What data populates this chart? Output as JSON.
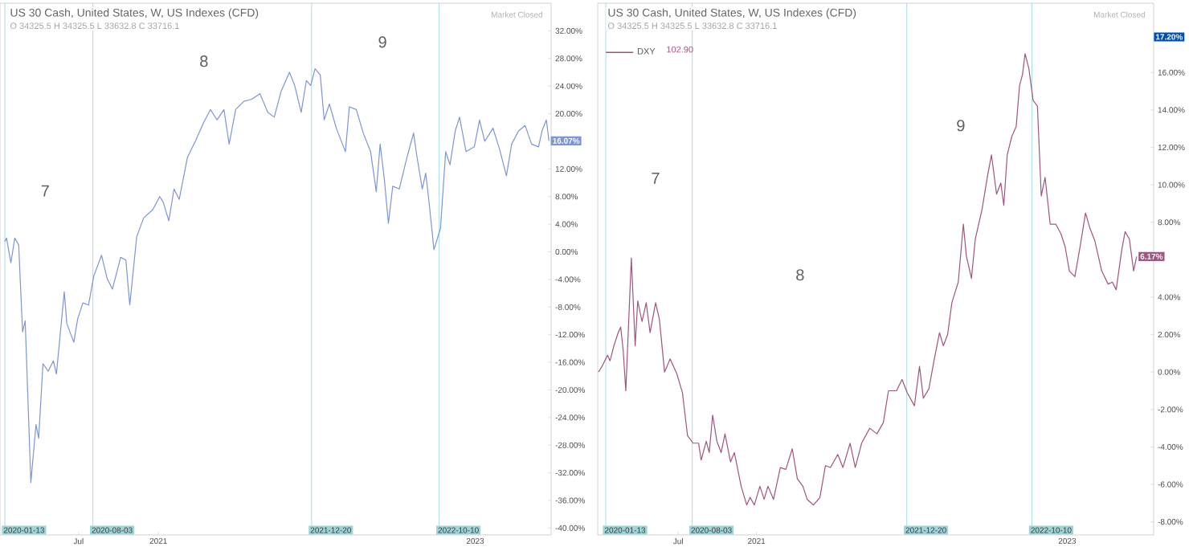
{
  "chart_data": [
    {
      "type": "line",
      "title": "US 30 Cash, United States, W, US Indexes (CFD)",
      "subtitle": "O 34325.5 H 34325.5 L 33632.8 C 33716.1",
      "annotations": [
        "Market Closed",
        "7",
        "8",
        "9"
      ],
      "series": [
        {
          "color": "#7e95d6",
          "x": [
            "2020-01-13",
            "2020-01-17",
            "2020-01-27",
            "2020-02-05",
            "2020-02-14",
            "2020-02-23",
            "2020-02-29",
            "2020-03-13",
            "2020-03-25",
            "2020-03-31",
            "2020-04-10",
            "2020-04-22",
            "2020-05-04",
            "2020-05-11",
            "2020-05-29",
            "2020-06-04",
            "2020-06-20",
            "2020-06-29",
            "2020-07-11",
            "2020-07-24",
            "2020-08-05",
            "2020-08-23",
            "2020-09-05",
            "2020-09-17",
            "2020-10-06",
            "2020-10-18",
            "2020-10-27",
            "2020-11-12",
            "2020-11-28",
            "2020-12-19",
            "2021-01-04",
            "2021-01-12",
            "2021-01-25",
            "2021-02-06",
            "2021-02-18",
            "2021-03-09",
            "2021-03-27",
            "2021-04-15",
            "2021-05-01",
            "2021-05-16",
            "2021-06-01",
            "2021-06-13",
            "2021-06-28",
            "2021-07-17",
            "2021-08-04",
            "2021-08-23",
            "2021-09-10",
            "2021-09-25",
            "2021-10-11",
            "2021-10-30",
            "2021-11-11",
            "2021-11-26",
            "2021-12-08",
            "2021-12-18",
            "2021-12-28",
            "2022-01-09",
            "2022-01-18",
            "2022-01-30",
            "2022-02-15",
            "2022-03-08",
            "2022-03-17",
            "2022-04-02",
            "2022-04-18",
            "2022-05-05",
            "2022-05-18",
            "2022-05-27",
            "2022-06-06",
            "2022-06-15",
            "2022-06-25",
            "2022-07-10",
            "2022-07-28",
            "2022-08-12",
            "2022-08-19",
            "2022-09-01",
            "2022-09-09",
            "2022-09-16",
            "2022-09-28",
            "2022-10-13",
            "2022-10-25",
            "2022-11-04",
            "2022-11-16",
            "2022-11-26",
            "2022-12-11",
            "2022-12-30",
            "2023-01-11",
            "2023-01-23",
            "2023-02-11",
            "2023-02-26",
            "2023-03-14",
            "2023-03-26",
            "2023-04-11",
            "2023-04-26",
            "2023-05-11",
            "2023-05-27",
            "2023-06-04",
            "2023-06-14",
            "2023-06-20"
          ],
          "values": [
            1.5,
            2,
            -1.6,
            2,
            1,
            -11.6,
            -10,
            -33.4,
            -25,
            -27,
            -16.2,
            -17.3,
            -15.8,
            -17.7,
            -5.8,
            -10.4,
            -13.1,
            -9.7,
            -7.4,
            -7.7,
            -3.5,
            -0.5,
            -3.9,
            -5.4,
            -0.8,
            -1.2,
            -7.7,
            2.2,
            4.9,
            6.1,
            8,
            7.2,
            4.5,
            9.1,
            7.6,
            13.7,
            16,
            18.7,
            20.6,
            19.1,
            20.6,
            15.6,
            20.6,
            21.8,
            22.1,
            22.9,
            20.2,
            19.5,
            23.3,
            26,
            24.1,
            20.2,
            24.8,
            24.1,
            26.5,
            25.6,
            19.1,
            21.4,
            17.9,
            14.5,
            21,
            20.6,
            17.2,
            14.5,
            8.7,
            15.6,
            10.3,
            4.1,
            9.5,
            9.1,
            13.7,
            17.2,
            14.1,
            9.1,
            11.4,
            7.6,
            0.3,
            3.4,
            14.5,
            12.6,
            17.5,
            19.5,
            14.5,
            15.2,
            19.1,
            16,
            17.9,
            14.9,
            11,
            15.6,
            17.5,
            18.3,
            15.6,
            15.2,
            17.5,
            19.1,
            16.07
          ],
          "value_labels": [
            null,
            null,
            null,
            null,
            null,
            null,
            null,
            null,
            null,
            null,
            null,
            null,
            null,
            null,
            null,
            null,
            null,
            null,
            null,
            null,
            null,
            null,
            null,
            null,
            null,
            null,
            null,
            null,
            null,
            null,
            null,
            null,
            null,
            null,
            null,
            null,
            null,
            null,
            null,
            null,
            null,
            null,
            null,
            null,
            null,
            null,
            null,
            null,
            null,
            null,
            null,
            null,
            null,
            null,
            null,
            null,
            null,
            null,
            null,
            null,
            null,
            null,
            null,
            null,
            null,
            null,
            null,
            null,
            null,
            null,
            null,
            null,
            null,
            null,
            null,
            null,
            null,
            null,
            null,
            null,
            null,
            null,
            null,
            null,
            null,
            null,
            null,
            null,
            null,
            null,
            null,
            null,
            null,
            null,
            null,
            null,
            "16.07%"
          ]
        }
      ],
      "xlim": [
        "2020-01-02",
        "2023-06-25"
      ],
      "xticks": [
        {
          "value": "2020-07-01",
          "label": "Jul"
        },
        {
          "value": "2021-01-01",
          "label": "2021"
        },
        {
          "value": "2023-01-01",
          "label": "2023"
        }
      ],
      "ylim": [
        -41,
        36
      ],
      "yticks": [
        {
          "value": -40,
          "label": "-40.00%"
        },
        {
          "value": -36,
          "label": "-36.00%"
        },
        {
          "value": -32,
          "label": "-32.00%"
        },
        {
          "value": -28,
          "label": "-28.00%"
        },
        {
          "value": -24,
          "label": "-24.00%"
        },
        {
          "value": -20,
          "label": "-20.00%"
        },
        {
          "value": -16,
          "label": "-16.00%"
        },
        {
          "value": -12,
          "label": "-12.00%"
        },
        {
          "value": -8,
          "label": "-8.00%"
        },
        {
          "value": -4,
          "label": "-4.00%"
        },
        {
          "value": 0,
          "label": "0.00%"
        },
        {
          "value": 4,
          "label": "4.00%"
        },
        {
          "value": 8,
          "label": "8.00%"
        },
        {
          "value": 12,
          "label": "12.00%"
        },
        {
          "value": 20,
          "label": "20.00%"
        },
        {
          "value": 24,
          "label": "24.00%"
        },
        {
          "value": 28,
          "label": "28.00%"
        },
        {
          "value": 32,
          "label": "32.00%"
        }
      ],
      "ref_lines": [
        {
          "axis": "x",
          "value": "2020-01-13",
          "label": "2020-01-13",
          "color": "#a6dfe3"
        },
        {
          "axis": "x",
          "value": "2020-08-03",
          "label": "2020-08-03",
          "color": "#a6dfe3"
        },
        {
          "axis": "x",
          "value": "2021-12-20",
          "label": "2021-12-20",
          "color": "#a6dfe3"
        },
        {
          "axis": "x",
          "value": "2022-10-10",
          "label": "2022-10-10",
          "color": "#a6dfe3"
        }
      ],
      "grid": false,
      "legend": false
    },
    {
      "type": "line",
      "title": "US 30 Cash, United States, W, US Indexes (CFD)",
      "subtitle": "O 34325.5 H 34325.5 L 33632.8 C 33716.1",
      "annotations": [
        "Market Closed",
        "17.20%",
        "102.90",
        "7",
        "8",
        "9"
      ],
      "series": [
        {
          "name": "DXY",
          "color": "#a0557f",
          "x": [
            "2019-12-27",
            "2020-01-04",
            "2020-01-17",
            "2020-01-23",
            "2020-02-01",
            "2020-02-11",
            "2020-02-17",
            "2020-02-23",
            "2020-02-29",
            "2020-03-13",
            "2020-03-22",
            "2020-03-28",
            "2020-04-07",
            "2020-04-17",
            "2020-04-26",
            "2020-05-09",
            "2020-05-18",
            "2020-05-30",
            "2020-06-12",
            "2020-06-28",
            "2020-07-11",
            "2020-07-23",
            "2020-08-05",
            "2020-08-18",
            "2020-08-24",
            "2020-09-05",
            "2020-09-12",
            "2020-09-20",
            "2020-09-30",
            "2020-10-10",
            "2020-10-19",
            "2020-11-01",
            "2020-11-10",
            "2020-11-26",
            "2020-12-09",
            "2020-12-17",
            "2020-12-27",
            "2021-01-09",
            "2021-01-19",
            "2021-01-28",
            "2021-02-10",
            "2021-02-26",
            "2021-03-11",
            "2021-03-26",
            "2021-04-07",
            "2021-04-20",
            "2021-04-30",
            "2021-05-15",
            "2021-05-30",
            "2021-06-12",
            "2021-06-24",
            "2021-07-11",
            "2021-07-23",
            "2021-08-09",
            "2021-08-21",
            "2021-09-05",
            "2021-09-24",
            "2021-10-11",
            "2021-10-26",
            "2021-11-07",
            "2021-11-26",
            "2021-12-09",
            "2021-12-21",
            "2022-01-07",
            "2022-01-19",
            "2022-01-28",
            "2022-02-10",
            "2022-02-22",
            "2022-03-07",
            "2022-03-16",
            "2022-03-26",
            "2022-04-05",
            "2022-04-20",
            "2022-05-02",
            "2022-05-09",
            "2022-05-21",
            "2022-05-30",
            "2022-06-15",
            "2022-06-28",
            "2022-07-07",
            "2022-07-19",
            "2022-07-29",
            "2022-08-05",
            "2022-08-13",
            "2022-08-24",
            "2022-09-03",
            "2022-09-11",
            "2022-09-18",
            "2022-09-24",
            "2022-10-03",
            "2022-10-13",
            "2022-10-23",
            "2022-11-01",
            "2022-11-10",
            "2022-11-22",
            "2022-12-05",
            "2022-12-17",
            "2022-12-27",
            "2023-01-06",
            "2023-01-19",
            "2023-02-01",
            "2023-02-13",
            "2023-02-23",
            "2023-03-07",
            "2023-03-23",
            "2023-04-07",
            "2023-04-17",
            "2023-04-26",
            "2023-05-09",
            "2023-05-17",
            "2023-05-27",
            "2023-06-06",
            "2023-06-13"
          ],
          "values": [
            0,
            0.3,
            0.9,
            0.6,
            1.4,
            2.1,
            2.4,
            1.1,
            -1,
            6.1,
            1.4,
            3.8,
            2.7,
            3.7,
            2.1,
            3.7,
            2.8,
            0,
            0.7,
            -0.1,
            -1.1,
            -3.4,
            -3.8,
            -3.8,
            -4.7,
            -3.7,
            -4.3,
            -2.3,
            -3.7,
            -4.3,
            -3.3,
            -4.8,
            -4.3,
            -6.1,
            -7.1,
            -6.7,
            -7.1,
            -6.1,
            -6.8,
            -6.1,
            -6.8,
            -5.1,
            -5.2,
            -4.1,
            -5.7,
            -6.1,
            -6.8,
            -7.1,
            -6.7,
            -5,
            -5.1,
            -4.4,
            -5.1,
            -3.8,
            -5.1,
            -3.8,
            -3,
            -3.3,
            -2.7,
            -1,
            -1,
            -0.4,
            -1.1,
            -1.8,
            0.3,
            -1.4,
            -0.9,
            0.6,
            2.1,
            1.4,
            2,
            3.7,
            4.8,
            7.9,
            6.2,
            5,
            7.1,
            8.7,
            10.5,
            11.6,
            9.5,
            10.1,
            8.9,
            11.6,
            12.6,
            13.1,
            15.3,
            15.9,
            17,
            16.2,
            14.5,
            14.2,
            9.4,
            10.4,
            7.9,
            7.9,
            7.4,
            6.7,
            5.4,
            5.1,
            6.8,
            8.5,
            7.7,
            7,
            5.4,
            4.7,
            4.8,
            4.4,
            6.5,
            7.5,
            7.1,
            5.4,
            6.17
          ],
          "value_labels": [
            null,
            null,
            null,
            null,
            null,
            null,
            null,
            null,
            null,
            null,
            null,
            null,
            null,
            null,
            null,
            null,
            null,
            null,
            null,
            null,
            null,
            null,
            null,
            null,
            null,
            null,
            null,
            null,
            null,
            null,
            null,
            null,
            null,
            null,
            null,
            null,
            null,
            null,
            null,
            null,
            null,
            null,
            null,
            null,
            null,
            null,
            null,
            null,
            null,
            null,
            null,
            null,
            null,
            null,
            null,
            null,
            null,
            null,
            null,
            null,
            null,
            null,
            null,
            null,
            null,
            null,
            null,
            null,
            null,
            null,
            null,
            null,
            null,
            null,
            null,
            null,
            null,
            null,
            null,
            null,
            null,
            null,
            null,
            null,
            null,
            null,
            null,
            null,
            null,
            null,
            null,
            null,
            null,
            null,
            null,
            null,
            null,
            null,
            null,
            null,
            null,
            null,
            null,
            null,
            null,
            null,
            null,
            null,
            null,
            null,
            null,
            null,
            "6.17%"
          ]
        }
      ],
      "xlim": [
        "2019-12-25",
        "2023-07-23"
      ],
      "xticks": [
        {
          "value": "2020-07-01",
          "label": "Jul"
        },
        {
          "value": "2021-01-01",
          "label": "2021"
        },
        {
          "value": "2023-01-01",
          "label": "2023"
        }
      ],
      "ylim": [
        -8.7,
        19.7
      ],
      "yticks": [
        {
          "value": -8,
          "label": "-8.00%"
        },
        {
          "value": -6,
          "label": "-6.00%"
        },
        {
          "value": -4,
          "label": "-4.00%"
        },
        {
          "value": -2,
          "label": "-2.00%"
        },
        {
          "value": 0,
          "label": "0.00%"
        },
        {
          "value": 2,
          "label": "2.00%"
        },
        {
          "value": 4,
          "label": "4.00%"
        },
        {
          "value": 8,
          "label": "8.00%"
        },
        {
          "value": 10,
          "label": "10.00%"
        },
        {
          "value": 12,
          "label": "12.00%"
        },
        {
          "value": 14,
          "label": "14.00%"
        },
        {
          "value": 16,
          "label": "16.00%"
        }
      ],
      "ref_lines": [
        {
          "axis": "x",
          "value": "2020-01-13",
          "label": "2020-01-13",
          "color": "#a6dfe3"
        },
        {
          "axis": "x",
          "value": "2020-08-03",
          "label": "2020-08-03",
          "color": "#a6dfe3"
        },
        {
          "axis": "x",
          "value": "2021-12-20",
          "label": "2021-12-20",
          "color": "#a6dfe3"
        },
        {
          "axis": "x",
          "value": "2022-10-10",
          "label": "2022-10-10",
          "color": "#a6dfe3"
        }
      ],
      "grid": false,
      "legend": "top left"
    }
  ]
}
